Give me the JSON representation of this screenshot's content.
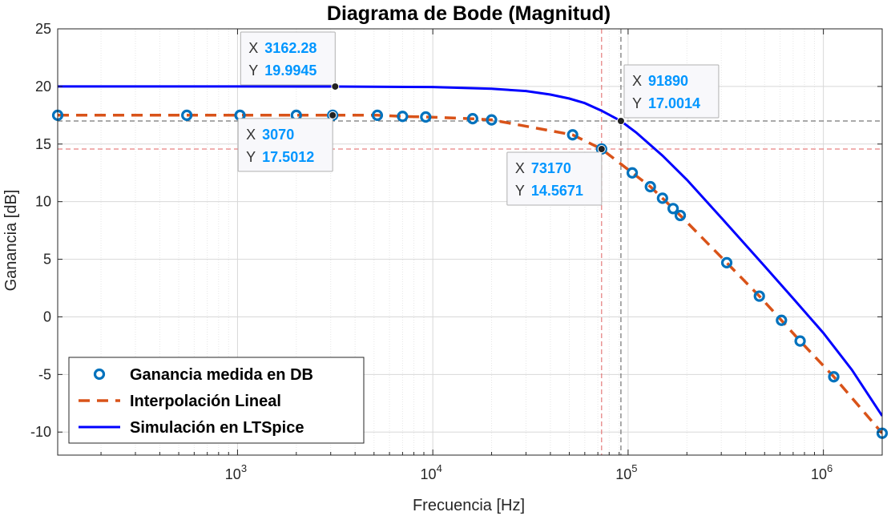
{
  "chart_data": {
    "type": "line",
    "title": "Diagrama de Bode (Magnitud)",
    "xlabel": "Frecuencia [Hz]",
    "ylabel": "Ganancia [dB]",
    "xscale": "log",
    "xlim": [
      120,
      2000000
    ],
    "ylim": [
      -12,
      25
    ],
    "yticks": [
      25,
      20,
      15,
      10,
      5,
      0,
      -5,
      -10
    ],
    "ytick_labels": [
      "25",
      "20",
      "15",
      "10",
      "5",
      "0",
      "-5",
      "-10"
    ],
    "xticks": [
      1000,
      10000,
      100000,
      1000000
    ],
    "xtick_labels": [
      {
        "base": "10",
        "exp": "3"
      },
      {
        "base": "10",
        "exp": "4"
      },
      {
        "base": "10",
        "exp": "5"
      },
      {
        "base": "10",
        "exp": "6"
      }
    ],
    "grid": true,
    "legend_position": "bottom-left",
    "series": [
      {
        "name": "Ganancia medida en DB",
        "style": "markers",
        "color": "#0072bd",
        "points": [
          [
            120,
            17.5
          ],
          [
            550,
            17.5
          ],
          [
            1030,
            17.5
          ],
          [
            2000,
            17.5
          ],
          [
            3070,
            17.5
          ],
          [
            5200,
            17.5
          ],
          [
            7000,
            17.4
          ],
          [
            9200,
            17.35
          ],
          [
            16000,
            17.2
          ],
          [
            20000,
            17.1
          ],
          [
            52000,
            15.8
          ],
          [
            73170,
            14.57
          ],
          [
            105000,
            12.5
          ],
          [
            130000,
            11.3
          ],
          [
            150000,
            10.3
          ],
          [
            170000,
            9.4
          ],
          [
            185000,
            8.8
          ],
          [
            320000,
            4.7
          ],
          [
            470000,
            1.8
          ],
          [
            610000,
            -0.3
          ],
          [
            760000,
            -2.1
          ],
          [
            1130000,
            -5.2
          ],
          [
            2000000,
            -10.1
          ]
        ]
      },
      {
        "name": "Interpolación Lineal",
        "style": "dashed",
        "color": "#d95319",
        "points": [
          [
            120,
            17.5
          ],
          [
            550,
            17.5
          ],
          [
            1030,
            17.5
          ],
          [
            2000,
            17.5
          ],
          [
            3070,
            17.5
          ],
          [
            5200,
            17.5
          ],
          [
            7000,
            17.4
          ],
          [
            9200,
            17.35
          ],
          [
            16000,
            17.2
          ],
          [
            20000,
            17.1
          ],
          [
            52000,
            15.8
          ],
          [
            73170,
            14.57
          ],
          [
            105000,
            12.5
          ],
          [
            130000,
            11.3
          ],
          [
            150000,
            10.3
          ],
          [
            170000,
            9.4
          ],
          [
            185000,
            8.8
          ],
          [
            320000,
            4.7
          ],
          [
            470000,
            1.8
          ],
          [
            610000,
            -0.3
          ],
          [
            760000,
            -2.1
          ],
          [
            1130000,
            -5.2
          ],
          [
            2000000,
            -10.1
          ]
        ]
      },
      {
        "name": "Simulación en LTSpice",
        "style": "solid",
        "color": "#0000ff",
        "points": [
          [
            120,
            20
          ],
          [
            1000,
            20
          ],
          [
            3162.28,
            19.99
          ],
          [
            10000,
            19.95
          ],
          [
            20000,
            19.8
          ],
          [
            30000,
            19.6
          ],
          [
            40000,
            19.3
          ],
          [
            50000,
            18.95
          ],
          [
            60000,
            18.55
          ],
          [
            73000,
            17.9
          ],
          [
            91890,
            17.0
          ],
          [
            110000,
            16.0
          ],
          [
            150000,
            14.0
          ],
          [
            200000,
            11.9
          ],
          [
            300000,
            8.6
          ],
          [
            500000,
            4.4
          ],
          [
            700000,
            1.6
          ],
          [
            1000000,
            -1.4
          ],
          [
            1400000,
            -4.6
          ],
          [
            2000000,
            -8.6
          ]
        ]
      }
    ],
    "datatips": [
      {
        "x": 3162.28,
        "y": 19.9945,
        "x_label": "X",
        "y_label": "Y",
        "x_text": "3162.28",
        "y_text": "19.9945",
        "position": "above-left",
        "crosshair": false
      },
      {
        "x": 3070,
        "y": 17.5012,
        "x_label": "X",
        "y_label": "Y",
        "x_text": "3070",
        "y_text": "17.5012",
        "position": "below-left",
        "crosshair": false
      },
      {
        "x": 91890,
        "y": 17.0014,
        "x_label": "X",
        "y_label": "Y",
        "x_text": "91890",
        "y_text": "17.0014",
        "position": "above-right",
        "crosshair": true,
        "crosshair_color": "#555555"
      },
      {
        "x": 73170,
        "y": 14.5671,
        "x_label": "X",
        "y_label": "Y",
        "x_text": "73170",
        "y_text": "14.5671",
        "position": "below-left",
        "crosshair": true,
        "crosshair_color": "#e06060"
      }
    ]
  }
}
